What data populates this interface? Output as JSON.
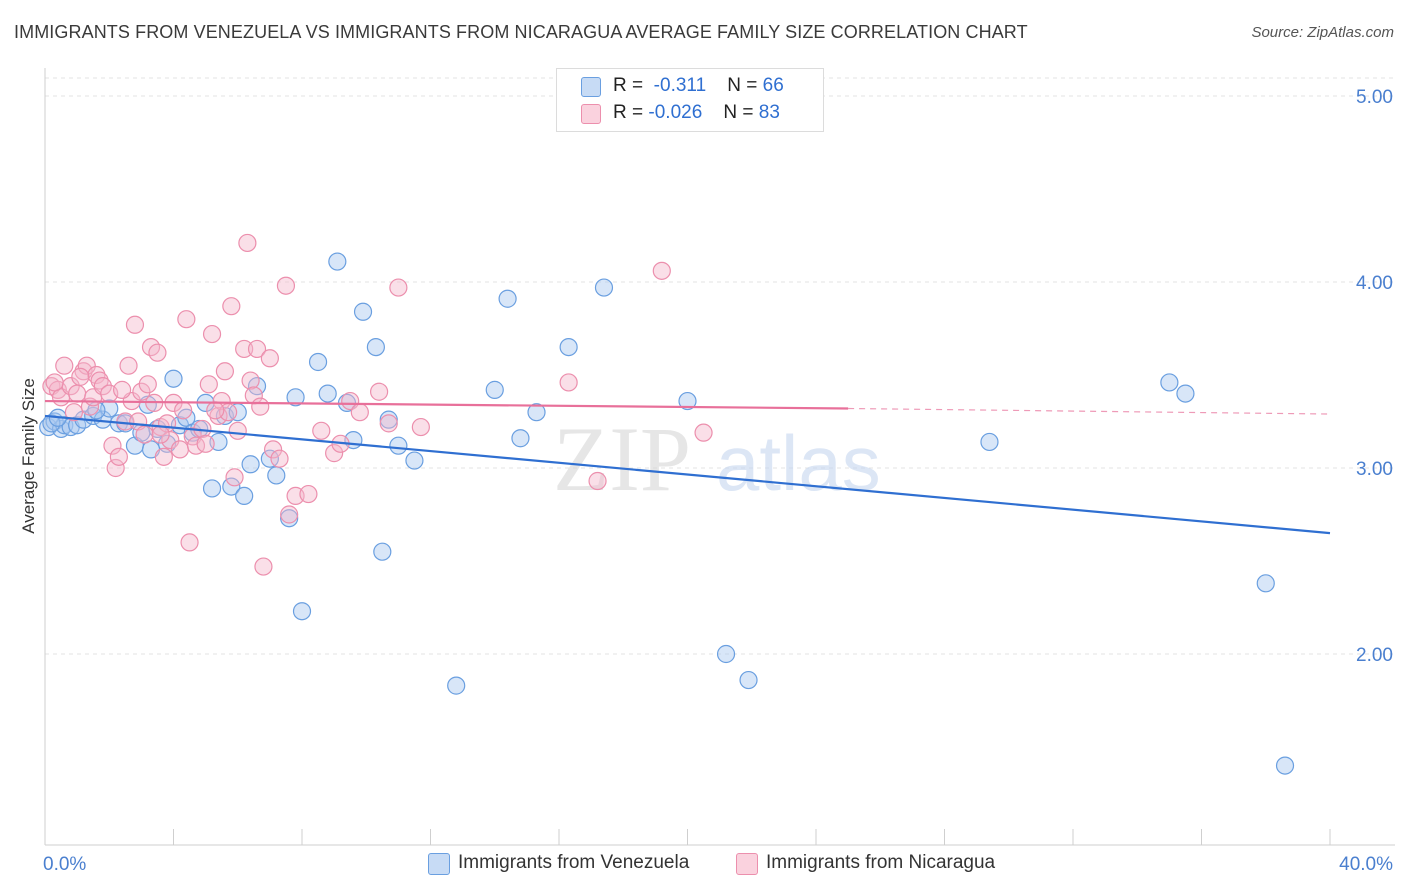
{
  "title": "IMMIGRANTS FROM VENEZUELA VS IMMIGRANTS FROM NICARAGUA AVERAGE FAMILY SIZE CORRELATION CHART",
  "source": "Source: ZipAtlas.com",
  "watermark": {
    "zip": "ZIP",
    "atlas": "atlas"
  },
  "legend": {
    "rows": [
      {
        "r_label": "R =",
        "r_value": "-0.311",
        "n_label": "N =",
        "n_value": "66",
        "color": "#a9c8f0"
      },
      {
        "r_label": "R =",
        "r_value": "-0.026",
        "n_label": "N =",
        "n_value": "83",
        "color": "#f5b8cb"
      }
    ]
  },
  "bottom_legend": [
    {
      "label": "Immigrants from Venezuela",
      "color": "#a9c8f0"
    },
    {
      "label": "Immigrants from Nicaragua",
      "color": "#f5b8cb"
    }
  ],
  "chart_data": {
    "type": "scatter",
    "ylabel": "Average Family Size",
    "xlim": [
      0,
      40
    ],
    "ylim": [
      1.0,
      5.2
    ],
    "x_tick_labels": {
      "min": "0.0%",
      "max": "40.0%"
    },
    "y_ticks": [
      5.0,
      4.0,
      3.0,
      2.0
    ],
    "y_tick_labels": [
      "5.00",
      "4.00",
      "3.00",
      "2.00"
    ],
    "series": [
      {
        "name": "Immigrants from Venezuela",
        "color": "#6a9fe0",
        "fill": "#a9c8f0",
        "line_color": "#2f6fd1",
        "trend": {
          "x0": 0,
          "y0": 3.28,
          "x1": 40,
          "y1": 2.65
        },
        "points": [
          [
            0.1,
            3.22
          ],
          [
            0.3,
            3.25
          ],
          [
            0.5,
            3.21
          ],
          [
            0.6,
            3.23
          ],
          [
            0.8,
            3.22
          ],
          [
            1.0,
            3.23
          ],
          [
            1.2,
            3.26
          ],
          [
            1.5,
            3.28
          ],
          [
            1.8,
            3.26
          ],
          [
            2.0,
            3.32
          ],
          [
            2.3,
            3.24
          ],
          [
            2.5,
            3.24
          ],
          [
            2.8,
            3.12
          ],
          [
            3.0,
            3.19
          ],
          [
            3.2,
            3.34
          ],
          [
            3.5,
            3.21
          ],
          [
            3.8,
            3.13
          ],
          [
            4.0,
            3.48
          ],
          [
            4.2,
            3.23
          ],
          [
            4.4,
            3.27
          ],
          [
            4.6,
            3.19
          ],
          [
            4.8,
            3.21
          ],
          [
            5.0,
            3.35
          ],
          [
            5.2,
            2.89
          ],
          [
            5.4,
            3.14
          ],
          [
            5.6,
            3.28
          ],
          [
            5.8,
            2.9
          ],
          [
            6.0,
            3.3
          ],
          [
            6.2,
            2.85
          ],
          [
            6.4,
            3.02
          ],
          [
            6.6,
            3.44
          ],
          [
            7.0,
            3.05
          ],
          [
            7.2,
            2.96
          ],
          [
            7.6,
            2.73
          ],
          [
            7.8,
            3.38
          ],
          [
            8.0,
            2.23
          ],
          [
            8.5,
            3.57
          ],
          [
            8.8,
            3.4
          ],
          [
            9.1,
            4.11
          ],
          [
            9.4,
            3.35
          ],
          [
            9.6,
            3.15
          ],
          [
            9.9,
            3.84
          ],
          [
            10.3,
            3.65
          ],
          [
            10.5,
            2.55
          ],
          [
            10.7,
            3.26
          ],
          [
            11.0,
            3.12
          ],
          [
            11.5,
            3.04
          ],
          [
            12.8,
            1.83
          ],
          [
            14.0,
            3.42
          ],
          [
            14.4,
            3.91
          ],
          [
            14.8,
            3.16
          ],
          [
            15.3,
            3.3
          ],
          [
            16.3,
            3.65
          ],
          [
            17.4,
            3.97
          ],
          [
            20.0,
            3.36
          ],
          [
            21.2,
            2.0
          ],
          [
            21.9,
            1.86
          ],
          [
            29.4,
            3.14
          ],
          [
            35.0,
            3.46
          ],
          [
            35.5,
            3.4
          ],
          [
            38.0,
            2.38
          ],
          [
            38.6,
            1.4
          ],
          [
            0.2,
            3.24
          ],
          [
            0.4,
            3.27
          ],
          [
            1.6,
            3.31
          ],
          [
            3.3,
            3.1
          ]
        ]
      },
      {
        "name": "Immigrants from Nicaragua",
        "color": "#ec8fad",
        "fill": "#f5b8cb",
        "line_color": "#e8709a",
        "trend": {
          "x0": 0,
          "y0": 3.36,
          "x1": 25,
          "y1": 3.32
        },
        "trend_dashed": {
          "x0": 25,
          "y0": 3.32,
          "x1": 40,
          "y1": 3.29
        },
        "points": [
          [
            0.2,
            3.44
          ],
          [
            0.4,
            3.42
          ],
          [
            0.5,
            3.38
          ],
          [
            0.6,
            3.55
          ],
          [
            0.8,
            3.44
          ],
          [
            0.9,
            3.3
          ],
          [
            1.0,
            3.4
          ],
          [
            1.2,
            3.52
          ],
          [
            1.3,
            3.55
          ],
          [
            1.4,
            3.33
          ],
          [
            1.5,
            3.38
          ],
          [
            1.6,
            3.5
          ],
          [
            1.7,
            3.47
          ],
          [
            1.8,
            3.44
          ],
          [
            2.0,
            3.4
          ],
          [
            2.1,
            3.12
          ],
          [
            2.2,
            3.0
          ],
          [
            2.3,
            3.06
          ],
          [
            2.5,
            3.25
          ],
          [
            2.6,
            3.55
          ],
          [
            2.7,
            3.36
          ],
          [
            2.8,
            3.77
          ],
          [
            2.9,
            3.25
          ],
          [
            3.0,
            3.41
          ],
          [
            3.1,
            3.18
          ],
          [
            3.2,
            3.45
          ],
          [
            3.3,
            3.65
          ],
          [
            3.4,
            3.35
          ],
          [
            3.5,
            3.62
          ],
          [
            3.6,
            3.22
          ],
          [
            3.7,
            3.06
          ],
          [
            3.8,
            3.24
          ],
          [
            3.9,
            3.15
          ],
          [
            4.0,
            3.35
          ],
          [
            4.2,
            3.1
          ],
          [
            4.3,
            3.31
          ],
          [
            4.4,
            3.8
          ],
          [
            4.5,
            2.6
          ],
          [
            4.6,
            3.17
          ],
          [
            4.7,
            3.12
          ],
          [
            4.9,
            3.21
          ],
          [
            5.0,
            3.13
          ],
          [
            5.1,
            3.45
          ],
          [
            5.2,
            3.72
          ],
          [
            5.4,
            3.28
          ],
          [
            5.5,
            3.36
          ],
          [
            5.6,
            3.52
          ],
          [
            5.7,
            3.3
          ],
          [
            5.8,
            3.87
          ],
          [
            5.9,
            2.95
          ],
          [
            6.0,
            3.2
          ],
          [
            6.2,
            3.64
          ],
          [
            6.3,
            4.21
          ],
          [
            6.4,
            3.47
          ],
          [
            6.5,
            3.39
          ],
          [
            6.6,
            3.64
          ],
          [
            6.8,
            2.47
          ],
          [
            7.0,
            3.59
          ],
          [
            7.1,
            3.1
          ],
          [
            7.3,
            3.05
          ],
          [
            7.5,
            3.98
          ],
          [
            7.6,
            2.75
          ],
          [
            7.8,
            2.85
          ],
          [
            8.2,
            2.86
          ],
          [
            8.6,
            3.2
          ],
          [
            9.0,
            3.08
          ],
          [
            9.2,
            3.13
          ],
          [
            9.5,
            3.36
          ],
          [
            9.8,
            3.3
          ],
          [
            10.4,
            3.41
          ],
          [
            10.7,
            3.24
          ],
          [
            11.0,
            3.97
          ],
          [
            11.7,
            3.22
          ],
          [
            16.3,
            3.46
          ],
          [
            17.2,
            2.93
          ],
          [
            19.2,
            4.06
          ],
          [
            20.5,
            3.19
          ],
          [
            0.3,
            3.46
          ],
          [
            1.1,
            3.49
          ],
          [
            2.4,
            3.42
          ],
          [
            3.6,
            3.18
          ],
          [
            5.3,
            3.31
          ],
          [
            6.7,
            3.33
          ]
        ]
      }
    ]
  }
}
